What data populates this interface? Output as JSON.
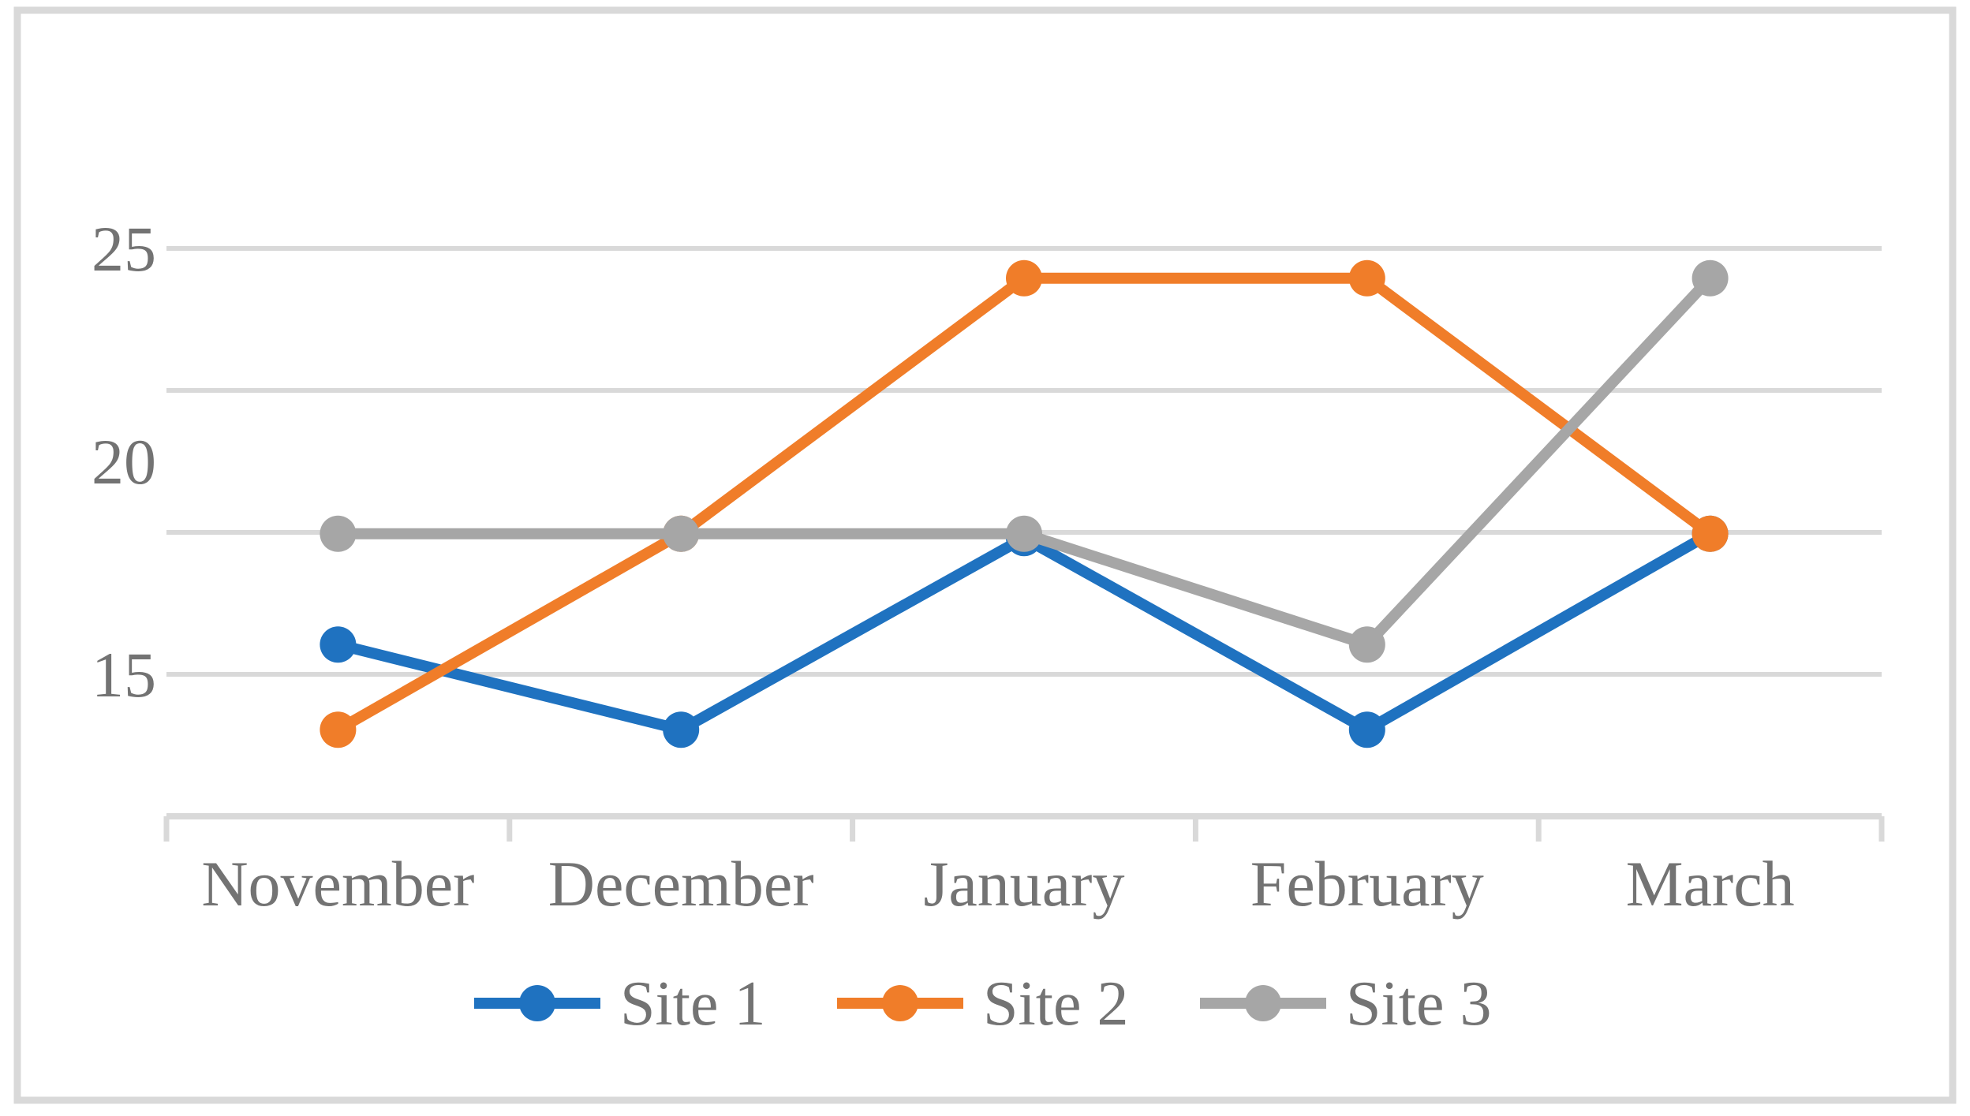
{
  "figure": {
    "kind": "line chart figure with outer border, no title"
  },
  "chart_data": {
    "type": "line",
    "title": "",
    "xlabel": "",
    "ylabel": "",
    "categories": [
      "November",
      "December",
      "January",
      "February",
      "March"
    ],
    "series": [
      {
        "name": "Site 1",
        "color": "#1F72C0",
        "values": [
          15.7,
          13.7,
          18.2,
          13.7,
          18.3
        ]
      },
      {
        "name": "Site 2",
        "color": "#F07D29",
        "values": [
          13.7,
          18.3,
          24.3,
          24.3,
          18.3
        ]
      },
      {
        "name": "Site 3",
        "color": "#A6A6A6",
        "values": [
          18.3,
          18.3,
          18.3,
          15.7,
          24.3
        ]
      }
    ],
    "ylim": [
      11.667,
      25
    ],
    "yticks": [
      25,
      20,
      15
    ],
    "gridline_values": [
      25,
      21.667,
      18.333,
      15
    ],
    "grid": true,
    "marker": "circle",
    "legend_position": "bottom-center",
    "legend": [
      "Site 1",
      "Site 2",
      "Site 3"
    ]
  },
  "colors": {
    "background": "#FFFFFF",
    "border": "#D9D9D9",
    "gridline": "#D9D9D9",
    "axis_line": "#D9D9D9",
    "tick": "#D9D9D9",
    "text": "#737373"
  }
}
